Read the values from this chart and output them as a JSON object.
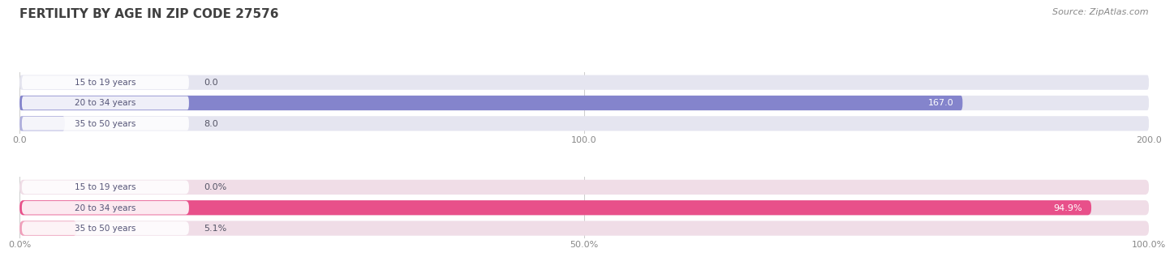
{
  "title": "FERTILITY BY AGE IN ZIP CODE 27576",
  "source": "Source: ZipAtlas.com",
  "top_chart": {
    "categories": [
      "15 to 19 years",
      "20 to 34 years",
      "35 to 50 years"
    ],
    "values": [
      0.0,
      167.0,
      8.0
    ],
    "xlim": [
      0,
      200
    ],
    "xticks": [
      0.0,
      100.0,
      200.0
    ],
    "xtick_labels": [
      "0.0",
      "100.0",
      "200.0"
    ],
    "bar_color_main": "#8484cc",
    "bar_color_light": "#b0b0dd",
    "value_labels": [
      "0.0",
      "167.0",
      "8.0"
    ],
    "bar_bg_color": "#e5e5f0"
  },
  "bottom_chart": {
    "categories": [
      "15 to 19 years",
      "20 to 34 years",
      "35 to 50 years"
    ],
    "values": [
      0.0,
      94.9,
      5.1
    ],
    "xlim": [
      0,
      100
    ],
    "xticks": [
      0.0,
      50.0,
      100.0
    ],
    "xtick_labels": [
      "0.0%",
      "50.0%",
      "100.0%"
    ],
    "bar_color_main": "#e8508a",
    "bar_color_light": "#f0a0bb",
    "value_labels": [
      "0.0%",
      "94.9%",
      "5.1%"
    ],
    "bar_bg_color": "#f0dde7"
  },
  "label_text_color": "#555577",
  "title_color": "#404040",
  "source_color": "#888888",
  "background_color": "#ffffff"
}
